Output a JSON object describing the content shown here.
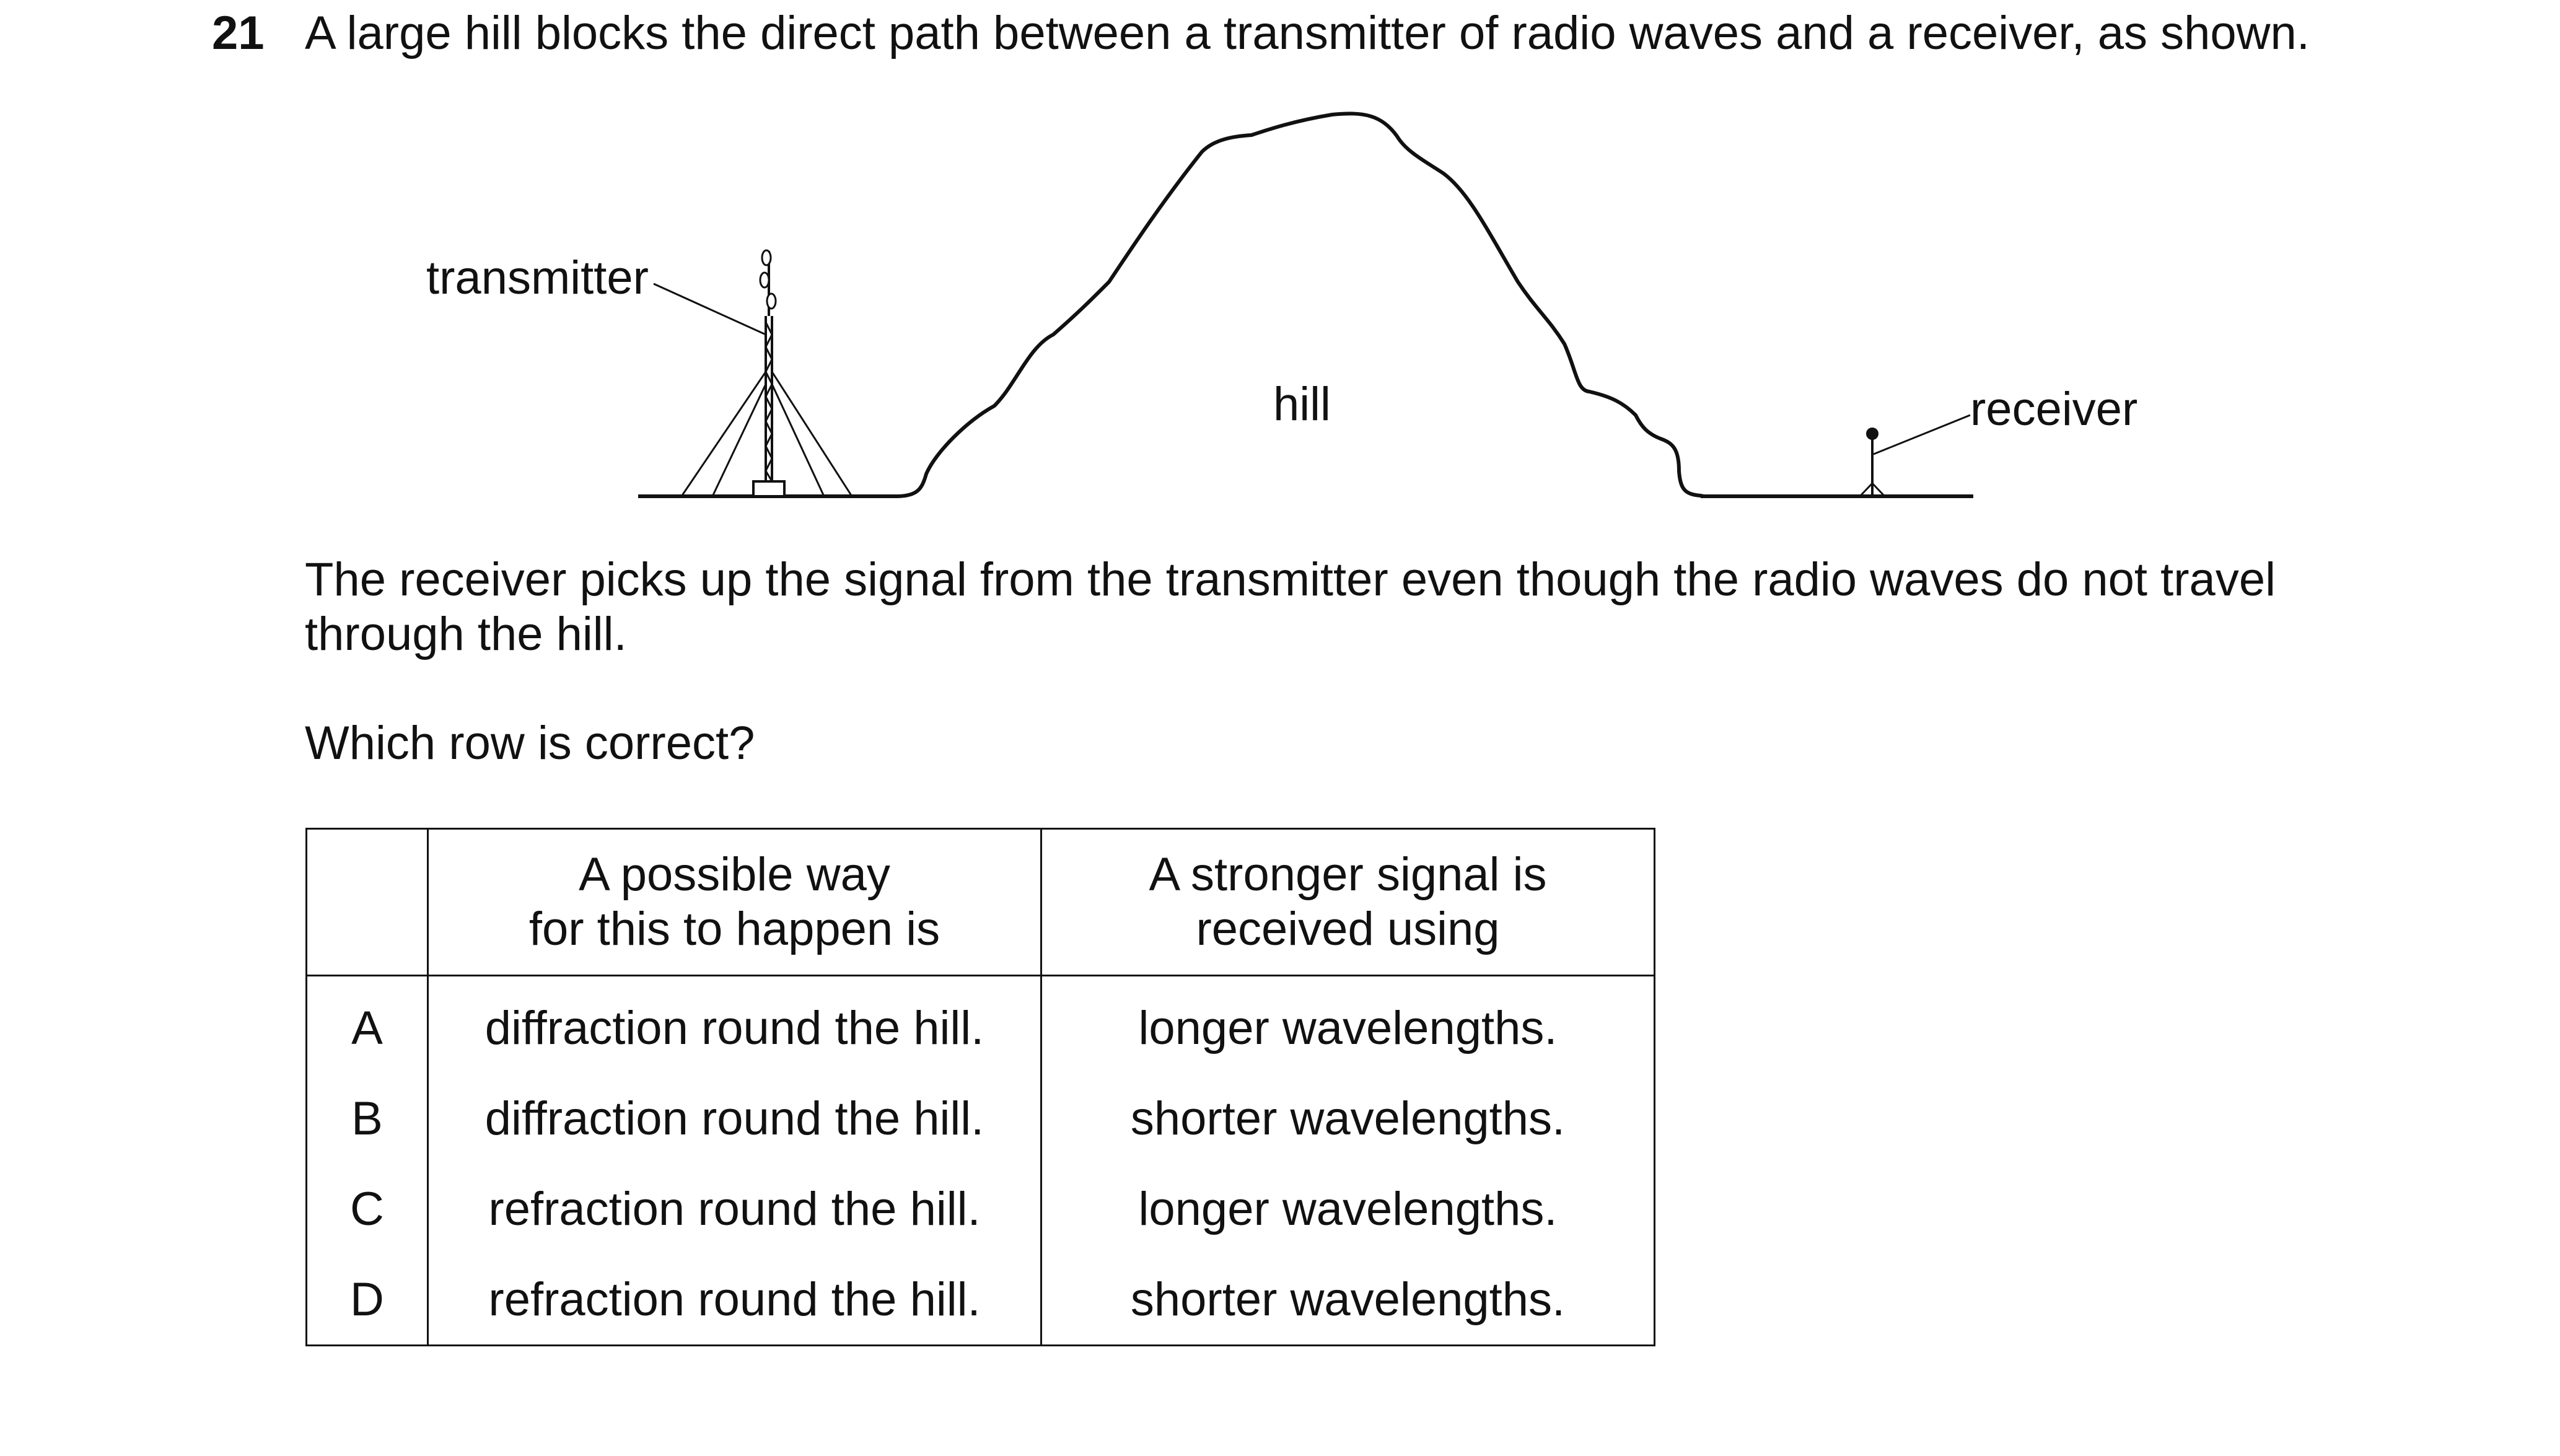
{
  "question": {
    "number": "21",
    "text": "A large hill blocks the direct path between a transmitter of radio waves and a receiver, as shown."
  },
  "diagram": {
    "labels": {
      "transmitter": "transmitter",
      "hill": "hill",
      "receiver": "receiver"
    }
  },
  "paragraph": "The receiver picks up the signal from the transmitter even though the radio waves do not travel through the hill.",
  "prompt": "Which row is correct?",
  "table": {
    "headers": {
      "col1_line1": "A possible way",
      "col1_line2": "for this to happen is",
      "col2_line1": "A stronger signal is",
      "col2_line2": "received using"
    },
    "rows": [
      {
        "letter": "A",
        "way": "diffraction round the hill.",
        "signal": "longer wavelengths."
      },
      {
        "letter": "B",
        "way": "diffraction round the hill.",
        "signal": "shorter wavelengths."
      },
      {
        "letter": "C",
        "way": "refraction round the hill.",
        "signal": "longer wavelengths."
      },
      {
        "letter": "D",
        "way": "refraction round the hill.",
        "signal": "shorter wavelengths."
      }
    ]
  }
}
